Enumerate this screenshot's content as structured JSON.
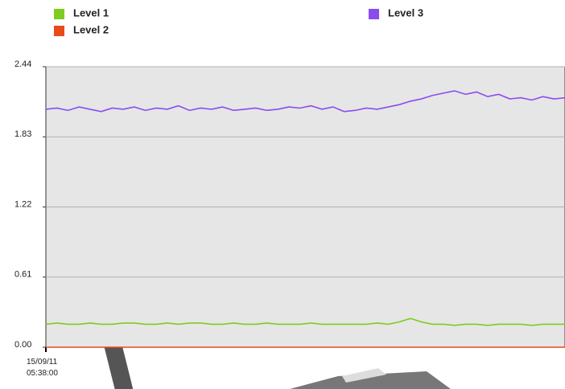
{
  "chart_data": {
    "type": "line",
    "categories": [
      "15/09/11 05:38:00",
      null,
      null,
      null,
      null,
      null,
      null,
      null,
      null,
      null,
      null,
      null,
      null,
      null,
      null,
      null,
      null,
      null,
      null,
      null,
      null,
      null,
      null,
      null,
      null,
      null,
      null,
      null,
      null,
      null,
      null,
      null,
      null,
      null,
      null,
      null,
      null,
      null,
      null,
      null,
      null,
      null,
      null,
      null,
      null,
      null,
      null,
      null
    ],
    "series": [
      {
        "name": "Level 1",
        "color": "#7dcc1e",
        "values": [
          0.2,
          0.21,
          0.2,
          0.2,
          0.21,
          0.2,
          0.2,
          0.21,
          0.21,
          0.2,
          0.2,
          0.21,
          0.2,
          0.21,
          0.21,
          0.2,
          0.2,
          0.21,
          0.2,
          0.2,
          0.21,
          0.2,
          0.2,
          0.2,
          0.21,
          0.2,
          0.2,
          0.2,
          0.2,
          0.2,
          0.21,
          0.2,
          0.22,
          0.25,
          0.22,
          0.2,
          0.2,
          0.19,
          0.2,
          0.2,
          0.19,
          0.2,
          0.2,
          0.2,
          0.19,
          0.2,
          0.2,
          0.2
        ]
      },
      {
        "name": "Level 2",
        "color": "#e84a1a",
        "values": [
          0,
          0,
          0,
          0,
          0,
          0,
          0,
          0,
          0,
          0,
          0,
          0,
          0,
          0,
          0,
          0,
          0,
          0,
          0,
          0,
          0,
          0,
          0,
          0,
          0,
          0,
          0,
          0,
          0,
          0,
          0,
          0,
          0,
          0,
          0,
          0,
          0,
          0,
          0,
          0,
          0,
          0,
          0,
          0,
          0,
          0,
          0,
          0
        ]
      },
      {
        "name": "Level 3",
        "color": "#8a4cf0",
        "values": [
          2.07,
          2.08,
          2.06,
          2.09,
          2.07,
          2.05,
          2.08,
          2.07,
          2.09,
          2.06,
          2.08,
          2.07,
          2.1,
          2.06,
          2.08,
          2.07,
          2.09,
          2.06,
          2.07,
          2.08,
          2.06,
          2.07,
          2.09,
          2.08,
          2.1,
          2.07,
          2.09,
          2.05,
          2.06,
          2.08,
          2.07,
          2.09,
          2.11,
          2.14,
          2.16,
          2.19,
          2.21,
          2.23,
          2.2,
          2.22,
          2.18,
          2.2,
          2.16,
          2.17,
          2.15,
          2.18,
          2.16,
          2.17
        ]
      }
    ],
    "ylim": [
      0,
      2.44
    ],
    "yticks": [
      {
        "value": 0,
        "label": "0.00"
      },
      0.61,
      1.22,
      1.83,
      2.44
    ],
    "grid": true
  }
}
